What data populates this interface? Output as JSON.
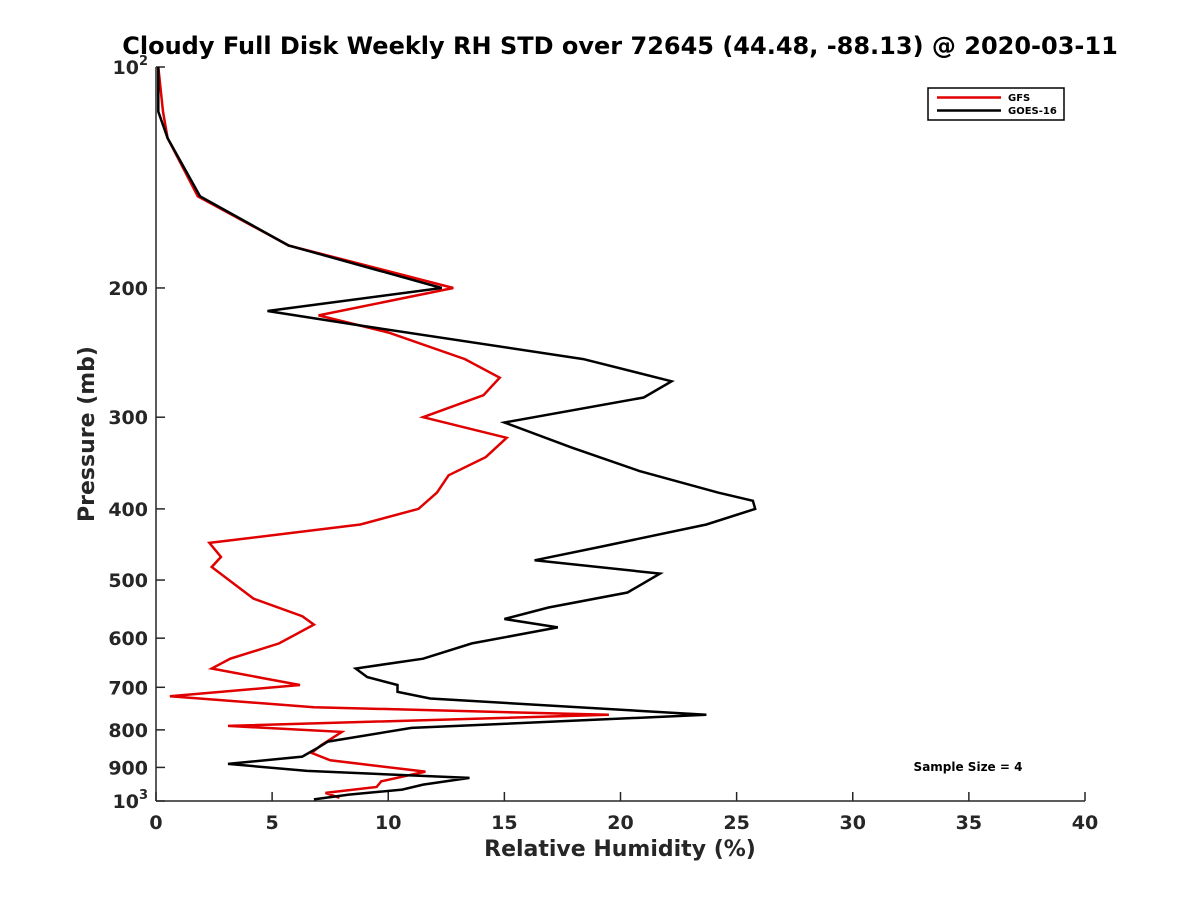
{
  "chart_data": {
    "type": "line",
    "title": "Cloudy Full Disk Weekly RH STD over 72645 (44.48, -88.13) @ 2020-03-11",
    "xlabel": "Relative Humidity (%)",
    "ylabel": "Pressure (mb)",
    "xlim": [
      0,
      40
    ],
    "ylim": [
      100,
      1000
    ],
    "y_scale": "log",
    "y_reversed": true,
    "grid": false,
    "legend_position": "top-right",
    "x_ticks": [
      "0",
      "5",
      "10",
      "15",
      "20",
      "25",
      "30",
      "35",
      "40"
    ],
    "y_ticks": [
      {
        "value": 100,
        "base": "10",
        "exp": "2"
      },
      {
        "value": 200,
        "label": "200"
      },
      {
        "value": 300,
        "label": "300"
      },
      {
        "value": 400,
        "label": "400"
      },
      {
        "value": 500,
        "label": "500"
      },
      {
        "value": 600,
        "label": "600"
      },
      {
        "value": 700,
        "label": "700"
      },
      {
        "value": 800,
        "label": "800"
      },
      {
        "value": 900,
        "label": "900"
      },
      {
        "value": 1000,
        "base": "10",
        "exp": "3"
      }
    ],
    "annotation": "Sample Size = 4",
    "series": [
      {
        "name": "GFS",
        "color": "#e00000",
        "points": [
          [
            0.1,
            100
          ],
          [
            0.3,
            115
          ],
          [
            0.5,
            125
          ],
          [
            1.8,
            150
          ],
          [
            5.7,
            175
          ],
          [
            12.8,
            200
          ],
          [
            7.0,
            218
          ],
          [
            10.0,
            230
          ],
          [
            13.3,
            250
          ],
          [
            14.8,
            265
          ],
          [
            14.1,
            280
          ],
          [
            11.5,
            300
          ],
          [
            15.1,
            320
          ],
          [
            14.2,
            340
          ],
          [
            12.6,
            360
          ],
          [
            12.1,
            380
          ],
          [
            11.3,
            400
          ],
          [
            8.8,
            420
          ],
          [
            2.3,
            445
          ],
          [
            2.8,
            465
          ],
          [
            2.4,
            480
          ],
          [
            4.2,
            530
          ],
          [
            6.3,
            560
          ],
          [
            6.8,
            575
          ],
          [
            5.3,
            610
          ],
          [
            3.2,
            640
          ],
          [
            2.4,
            660
          ],
          [
            4.6,
            680
          ],
          [
            6.2,
            695
          ],
          [
            0.6,
            720
          ],
          [
            6.8,
            745
          ],
          [
            19.5,
            763
          ],
          [
            3.1,
            790
          ],
          [
            8.0,
            805
          ],
          [
            7.1,
            840
          ],
          [
            6.7,
            860
          ],
          [
            7.5,
            880
          ],
          [
            11.6,
            912
          ],
          [
            9.7,
            940
          ],
          [
            9.5,
            957
          ],
          [
            7.3,
            975
          ],
          [
            7.9,
            990
          ]
        ]
      },
      {
        "name": "GOES-16",
        "color": "#000000",
        "points": [
          [
            0.1,
            100
          ],
          [
            0.1,
            115
          ],
          [
            0.5,
            125
          ],
          [
            1.9,
            150
          ],
          [
            5.7,
            175
          ],
          [
            12.3,
            200
          ],
          [
            4.8,
            215
          ],
          [
            8.8,
            225
          ],
          [
            18.4,
            250
          ],
          [
            22.2,
            268
          ],
          [
            21.0,
            282
          ],
          [
            15.0,
            305
          ],
          [
            17.9,
            330
          ],
          [
            20.8,
            355
          ],
          [
            24.2,
            380
          ],
          [
            25.7,
            390
          ],
          [
            25.8,
            400
          ],
          [
            23.7,
            420
          ],
          [
            19.2,
            450
          ],
          [
            16.3,
            470
          ],
          [
            21.7,
            490
          ],
          [
            20.3,
            520
          ],
          [
            16.9,
            545
          ],
          [
            15.0,
            565
          ],
          [
            17.3,
            580
          ],
          [
            13.6,
            610
          ],
          [
            11.5,
            640
          ],
          [
            8.6,
            660
          ],
          [
            9.1,
            678
          ],
          [
            10.4,
            695
          ],
          [
            10.4,
            710
          ],
          [
            11.8,
            725
          ],
          [
            23.7,
            763
          ],
          [
            11.0,
            795
          ],
          [
            7.4,
            830
          ],
          [
            7.0,
            845
          ],
          [
            6.3,
            870
          ],
          [
            3.1,
            890
          ],
          [
            6.5,
            910
          ],
          [
            13.5,
            930
          ],
          [
            11.5,
            950
          ],
          [
            10.6,
            965
          ],
          [
            8.3,
            980
          ],
          [
            6.8,
            995
          ]
        ]
      }
    ]
  }
}
